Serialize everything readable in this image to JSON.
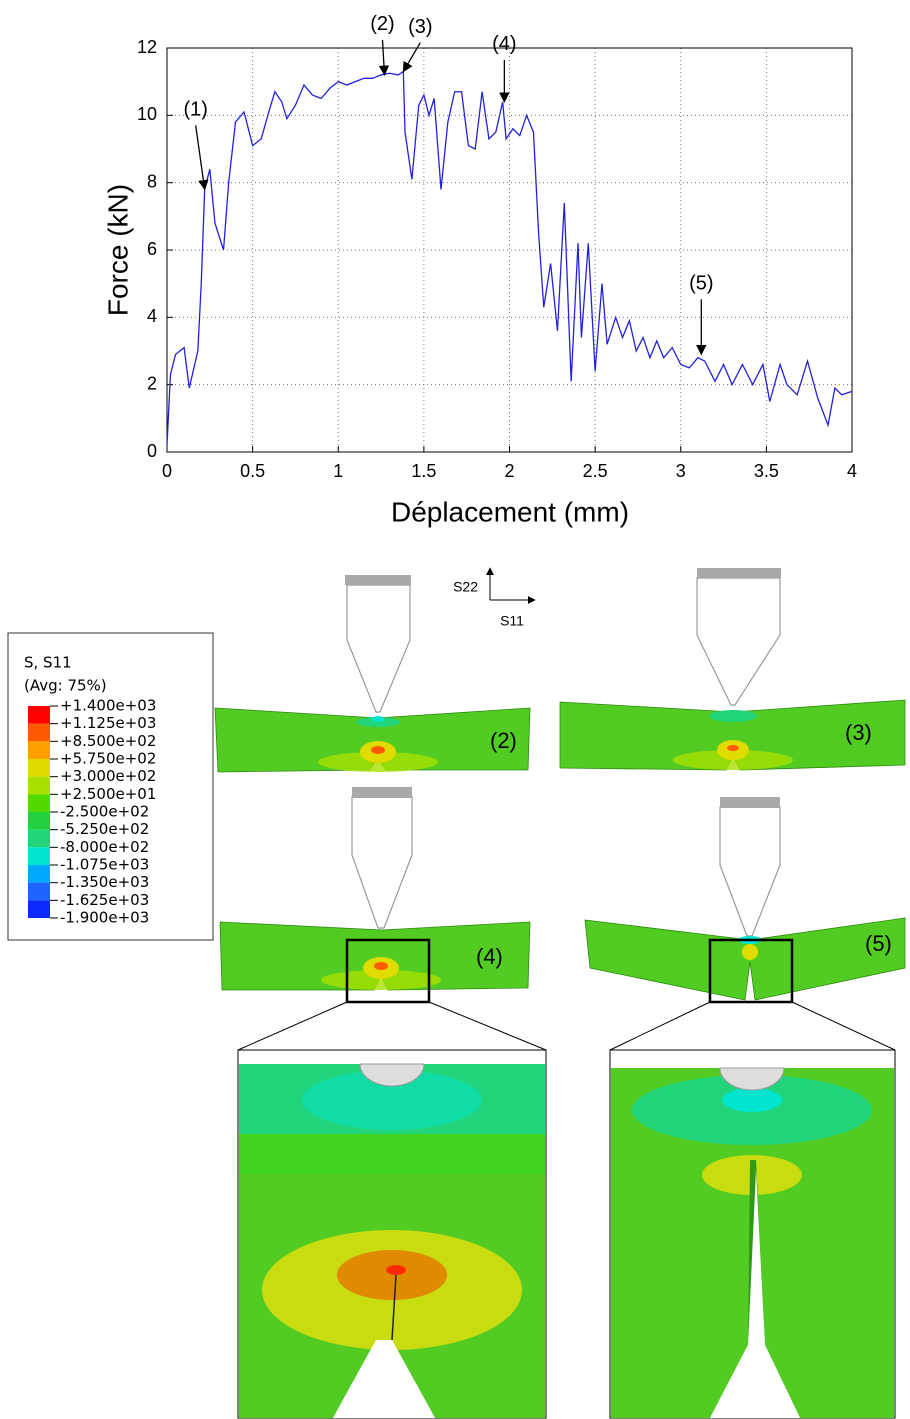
{
  "chart_data": {
    "type": "line",
    "y_label": "Force (kN)",
    "x_label": "Déplacement (mm)",
    "x": [
      0,
      0.02,
      0.05,
      0.1,
      0.13,
      0.18,
      0.2,
      0.22,
      0.25,
      0.28,
      0.33,
      0.36,
      0.4,
      0.45,
      0.5,
      0.55,
      0.6,
      0.63,
      0.67,
      0.7,
      0.75,
      0.8,
      0.85,
      0.9,
      0.95,
      1.0,
      1.05,
      1.1,
      1.15,
      1.2,
      1.25,
      1.3,
      1.35,
      1.38,
      1.39,
      1.43,
      1.47,
      1.5,
      1.53,
      1.56,
      1.6,
      1.64,
      1.68,
      1.72,
      1.76,
      1.8,
      1.84,
      1.88,
      1.92,
      1.96,
      1.98,
      2.02,
      2.06,
      2.1,
      2.14,
      2.17,
      2.2,
      2.24,
      2.28,
      2.32,
      2.36,
      2.4,
      2.42,
      2.46,
      2.5,
      2.54,
      2.57,
      2.62,
      2.66,
      2.7,
      2.74,
      2.78,
      2.82,
      2.86,
      2.9,
      2.95,
      3.0,
      3.05,
      3.1,
      3.14,
      3.2,
      3.25,
      3.3,
      3.36,
      3.42,
      3.48,
      3.52,
      3.58,
      3.62,
      3.68,
      3.74,
      3.8,
      3.86,
      3.9,
      3.94,
      4.0
    ],
    "values": [
      0.2,
      2.3,
      2.9,
      3.1,
      1.9,
      3.0,
      5.0,
      7.8,
      8.4,
      6.8,
      6.0,
      8.0,
      9.8,
      10.1,
      9.1,
      9.3,
      10.2,
      10.7,
      10.4,
      9.9,
      10.3,
      10.9,
      10.6,
      10.5,
      10.8,
      11.0,
      10.9,
      11.0,
      11.1,
      11.1,
      11.2,
      11.25,
      11.2,
      11.3,
      9.5,
      8.1,
      10.3,
      10.6,
      10.0,
      10.5,
      7.8,
      9.8,
      10.7,
      10.7,
      9.1,
      9.0,
      10.7,
      9.3,
      9.5,
      10.4,
      9.3,
      9.6,
      9.4,
      10.0,
      9.5,
      6.5,
      4.3,
      5.6,
      3.6,
      7.4,
      2.1,
      6.2,
      3.4,
      6.2,
      2.4,
      5.0,
      3.2,
      4.0,
      3.4,
      3.9,
      3.0,
      3.4,
      2.8,
      3.3,
      2.8,
      3.1,
      2.6,
      2.5,
      2.8,
      2.7,
      2.1,
      2.6,
      2.0,
      2.6,
      2.0,
      2.6,
      1.5,
      2.6,
      2.0,
      1.7,
      2.7,
      1.6,
      0.8,
      1.9,
      1.7,
      1.8
    ],
    "color": "#2222dd",
    "xlim": [
      0,
      4
    ],
    "xticks": [
      0,
      0.5,
      1,
      1.5,
      2,
      2.5,
      3,
      3.5,
      4
    ],
    "ylim": [
      0,
      12
    ],
    "yticks": [
      0,
      2,
      4,
      6,
      8,
      10,
      12
    ],
    "grid": true,
    "annotations": [
      {
        "text": "(1)",
        "x": 0.22,
        "y": 7.8
      },
      {
        "text": "(2)",
        "x": 1.27,
        "y": 11.2
      },
      {
        "text": "(3)",
        "x": 1.38,
        "y": 11.3
      },
      {
        "text": "(4)",
        "x": 1.97,
        "y": 10.4
      },
      {
        "text": "(5)",
        "x": 3.12,
        "y": 2.9
      }
    ]
  },
  "fem": {
    "triad": {
      "vertical": "S22",
      "horizontal": "S11"
    },
    "legend": {
      "title": "S, S11",
      "subtitle": "(Avg: 75%)",
      "labels": [
        "+1.400e+03",
        "+1.125e+03",
        "+8.500e+02",
        "+5.750e+02",
        "+3.000e+02",
        "+2.500e+01",
        "-2.500e+02",
        "-5.250e+02",
        "-8.000e+02",
        "-1.075e+03",
        "-1.350e+03",
        "-1.625e+03",
        "-1.900e+03"
      ],
      "colors": [
        "#ff0000",
        "#ff5a00",
        "#ffa000",
        "#e0dc00",
        "#a8e000",
        "#52d900",
        "#22d040",
        "#22d47a",
        "#00e4d0",
        "#00a8ff",
        "#1e64ff",
        "#0a28ff"
      ]
    },
    "panels": [
      "(2)",
      "(3)",
      "(4)",
      "(5)"
    ]
  }
}
